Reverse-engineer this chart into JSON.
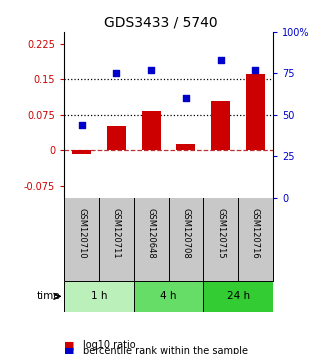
{
  "title": "GDS3433 / 5740",
  "samples": [
    "GSM120710",
    "GSM120711",
    "GSM120648",
    "GSM120708",
    "GSM120715",
    "GSM120716"
  ],
  "log10_ratio": [
    -0.008,
    0.052,
    0.082,
    0.013,
    0.105,
    0.162
  ],
  "percentile_rank": [
    44,
    75,
    77,
    60,
    83,
    77
  ],
  "bar_color": "#cc0000",
  "dot_color": "#0000cc",
  "ylim_left": [
    -0.1,
    0.25
  ],
  "ylim_right": [
    0,
    100
  ],
  "yticks_left": [
    -0.075,
    0,
    0.075,
    0.15,
    0.225
  ],
  "yticks_right": [
    0,
    25,
    50,
    75,
    100
  ],
  "hlines": [
    0.075,
    0.15
  ],
  "zero_line": 0,
  "time_groups": [
    {
      "label": "1 h",
      "start": 0,
      "end": 2,
      "color": "#bbf0bb"
    },
    {
      "label": "4 h",
      "start": 2,
      "end": 4,
      "color": "#66dd66"
    },
    {
      "label": "24 h",
      "start": 4,
      "end": 6,
      "color": "#33cc33"
    }
  ],
  "legend_red": "log10 ratio",
  "legend_blue": "percentile rank within the sample",
  "time_label": "time",
  "background_plot": "#ffffff",
  "background_samples": "#c8c8c8",
  "title_fontsize": 10,
  "tick_fontsize": 7,
  "sample_fontsize": 6,
  "legend_fontsize": 7
}
